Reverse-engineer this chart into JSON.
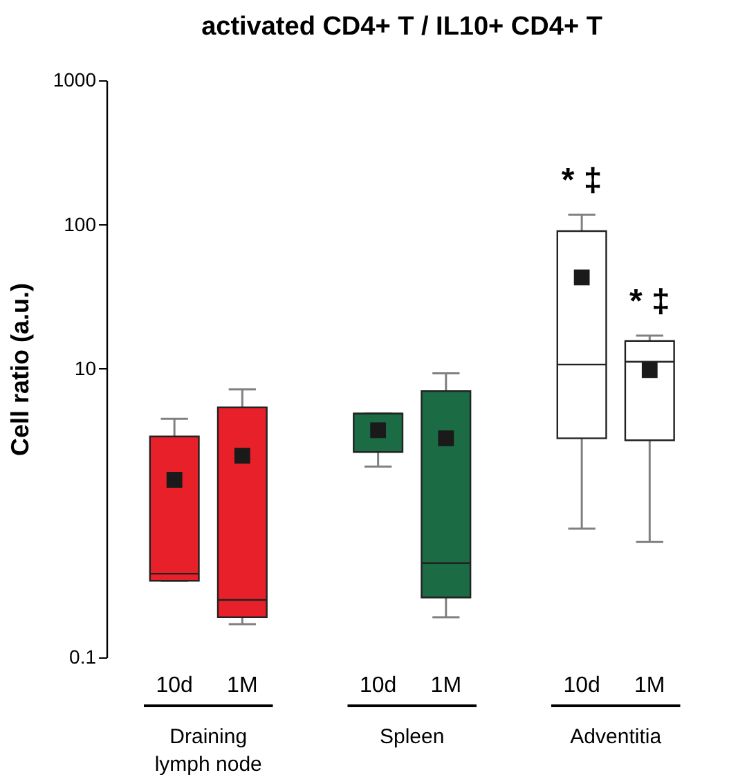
{
  "chart_data": {
    "type": "box",
    "title": "activated CD4+ T / IL10+ CD4+ T",
    "ylabel": "Cell ratio (a.u.)",
    "categories": [
      "10d",
      "1M",
      null,
      "10d",
      "1M",
      null,
      "10d",
      "1M"
    ],
    "boxes": [
      {
        "low": 0.34,
        "q1": 0.34,
        "median": 0.38,
        "q3": 3.4,
        "high": 4.5,
        "mean": 1.7
      },
      {
        "low": 0.17,
        "q1": 0.19,
        "median": 0.25,
        "q3": 5.4,
        "high": 7.2,
        "mean": 2.5
      },
      null,
      {
        "low": 2.1,
        "q1": 2.65,
        "median": 4.9,
        "q3": 4.9,
        "high": 4.9,
        "mean": 3.75
      },
      {
        "low": 0.19,
        "q1": 0.26,
        "median": 0.45,
        "q3": 7.0,
        "high": 9.3,
        "mean": 3.3
      },
      null,
      {
        "low": 0.78,
        "q1": 3.3,
        "median": 10.7,
        "q3": 90,
        "high": 117,
        "mean": 43
      },
      {
        "low": 0.63,
        "q1": 3.2,
        "median": 11.2,
        "q3": 15.6,
        "high": 17,
        "mean": 9.8
      }
    ],
    "colors": [
      "#e8202a",
      "#e8202a",
      null,
      "#1b6b45",
      "#1b6b45",
      null,
      "#ffffff",
      "#ffffff"
    ],
    "log": true,
    "ylim": [
      0.1,
      1000
    ],
    "yticks": [
      0.1,
      10,
      100,
      1000
    ],
    "grid": false,
    "legend": false,
    "marker": "square",
    "annotations": [
      "* ‡",
      "* ‡",
      "Draining lymph node",
      "Spleen",
      "Adventitia"
    ]
  }
}
